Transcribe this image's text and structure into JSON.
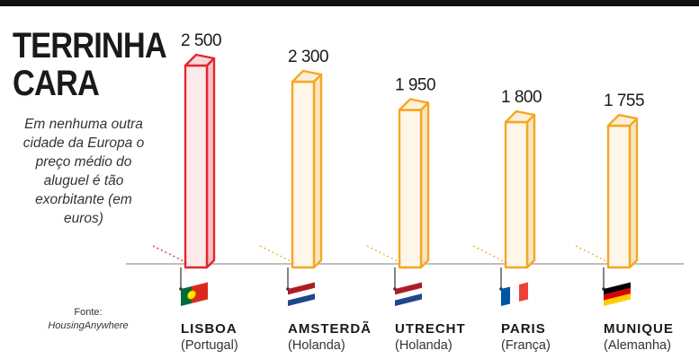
{
  "header": {
    "title_line1": "TERRINHA",
    "title_line2": "CARA",
    "subtitle": "Em nenhuma outra cidade da Europa o preço médio do aluguel é tão exorbitante (em euros)"
  },
  "source": {
    "label": "Fonte:",
    "name": "HousingAnywhere"
  },
  "colors": {
    "highlight": "#e2272f",
    "default": "#f5a623",
    "baseline": "#aaaaaa",
    "text": "#1a1a1a"
  },
  "chart_data": {
    "type": "bar",
    "title": "TERRINHA CARA",
    "subtitle": "Em nenhuma outra cidade da Europa o preço médio do aluguel é tão exorbitante (em euros)",
    "categories": [
      "LISBOA",
      "AMSTERDÃ",
      "UTRECHT",
      "PARIS",
      "MUNIQUE"
    ],
    "values": [
      2500,
      2300,
      1950,
      1800,
      1755
    ],
    "value_labels": [
      "2 500",
      "2 300",
      "1 950",
      "1 800",
      "1 755"
    ],
    "countries": [
      "(Portugal)",
      "(Holanda)",
      "(Holanda)",
      "(França)",
      "(Alemanha)"
    ],
    "flags": [
      "portugal-flag",
      "netherlands-flag",
      "netherlands-flag",
      "france-flag",
      "germany-flag"
    ],
    "highlight_index": 0,
    "xlabel": "",
    "ylabel": "",
    "ylim": [
      0,
      2500
    ],
    "grid": false,
    "legend": "none"
  }
}
